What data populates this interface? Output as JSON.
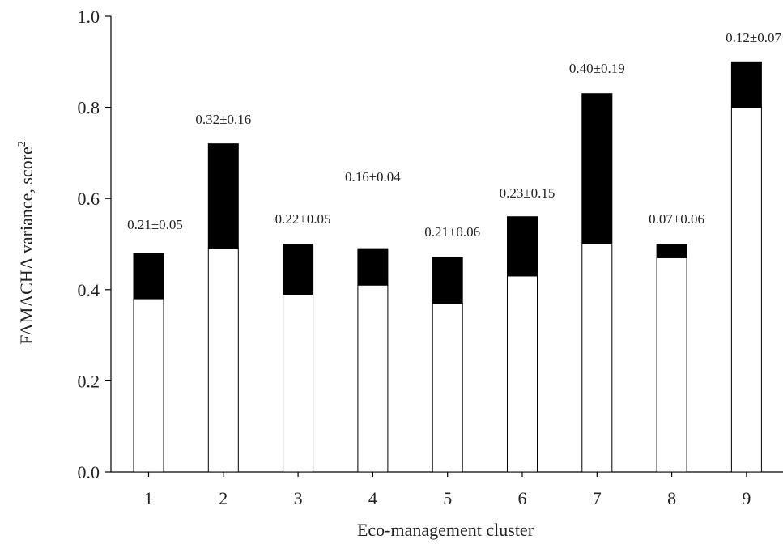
{
  "chart_data": {
    "type": "bar",
    "stacked": true,
    "categories": [
      "1",
      "2",
      "3",
      "4",
      "5",
      "6",
      "7",
      "8",
      "9"
    ],
    "series": [
      {
        "values": [
          0.38,
          0.49,
          0.39,
          0.41,
          0.37,
          0.43,
          0.5,
          0.47,
          0.8
        ],
        "color": "#ffffff"
      },
      {
        "values": [
          0.1,
          0.23,
          0.11,
          0.08,
          0.1,
          0.13,
          0.33,
          0.03,
          0.1
        ],
        "color": "#000000"
      }
    ],
    "data_labels": [
      "0.21±0.05",
      "0.32±0.16",
      "0.22±0.05",
      "0.16±0.04",
      "0.21±0.06",
      "0.23±0.15",
      "0.40±0.19",
      "0.07±0.06",
      "0.12±0.07"
    ],
    "xlabel": "Eco-management cluster",
    "ylabel": "FAMACHA variance, score",
    "ylabel_superscript": "2",
    "ylim": [
      0,
      1.0
    ],
    "yticks": [
      "0.0",
      "0.2",
      "0.4",
      "0.6",
      "0.8",
      "1.0"
    ],
    "grid": false,
    "legend": "none"
  }
}
